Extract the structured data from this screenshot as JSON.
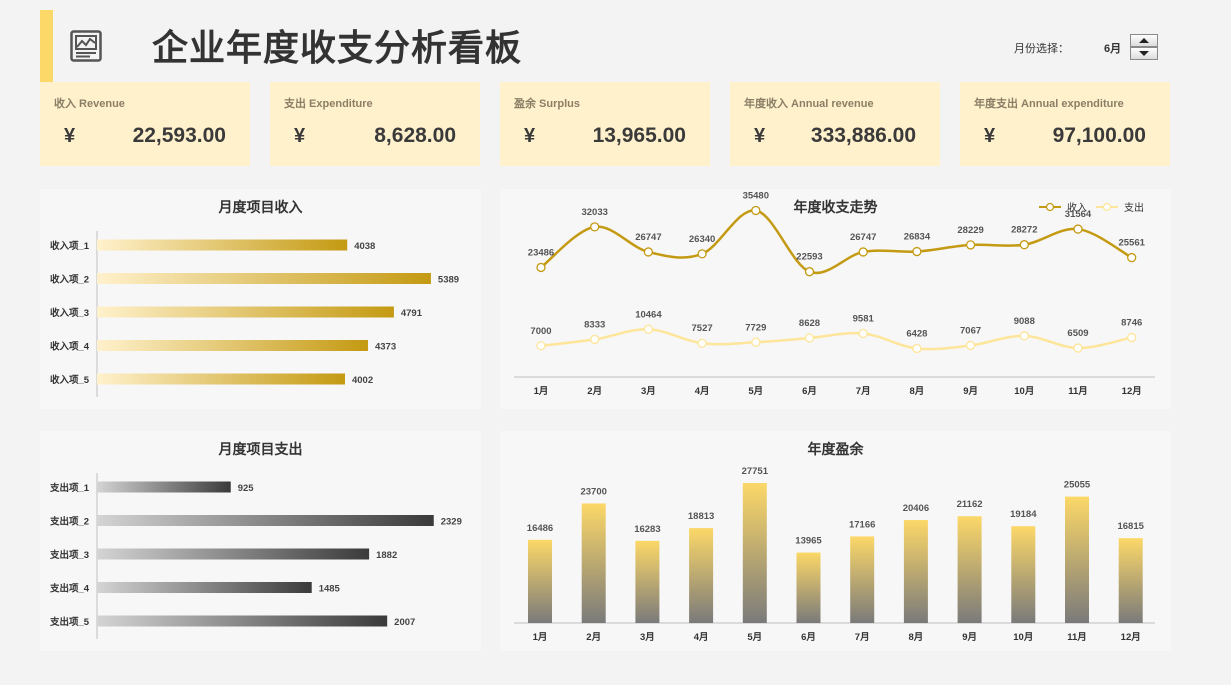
{
  "header": {
    "title": "企业年度收支分析看板",
    "title_icon": "presentation-chart-icon",
    "month_label": "月份选择：",
    "month_value": "6月",
    "accent_color": "#fcd868"
  },
  "kpis": [
    {
      "label": "收入 Revenue",
      "currency": "¥",
      "value": "22,593.00"
    },
    {
      "label": "支出 Expenditure",
      "currency": "¥",
      "value": "8,628.00"
    },
    {
      "label": "盈余 Surplus",
      "currency": "¥",
      "value": "13,965.00"
    },
    {
      "label": "年度收入 Annual revenue",
      "currency": "¥",
      "value": "333,886.00"
    },
    {
      "label": "年度支出 Annual expenditure",
      "currency": "¥",
      "value": "97,100.00"
    }
  ],
  "chart_data": [
    {
      "id": "income_items",
      "type": "bar",
      "orientation": "horizontal",
      "title": "月度项目收入",
      "categories": [
        "收入项_1",
        "收入项_2",
        "收入项_3",
        "收入项_4",
        "收入项_5"
      ],
      "values": [
        4038,
        5389,
        4791,
        4373,
        4002
      ],
      "colors": [
        "#fff1cc",
        "#c49a12"
      ]
    },
    {
      "id": "trend",
      "type": "line",
      "title": "年度收支走势",
      "categories": [
        "1月",
        "2月",
        "3月",
        "4月",
        "5月",
        "6月",
        "7月",
        "8月",
        "9月",
        "10月",
        "11月",
        "12月"
      ],
      "series": [
        {
          "name": "收入",
          "color": "#c49a12",
          "values": [
            23486,
            32033,
            26747,
            26340,
            35480,
            22593,
            26747,
            26834,
            28229,
            28272,
            31564,
            25561
          ]
        },
        {
          "name": "支出",
          "color": "#fde59a",
          "values": [
            7000,
            8333,
            10464,
            7527,
            7729,
            8628,
            9581,
            6428,
            7067,
            9088,
            6509,
            8746
          ]
        }
      ],
      "legend": "top-right"
    },
    {
      "id": "expense_items",
      "type": "bar",
      "orientation": "horizontal",
      "title": "月度项目支出",
      "categories": [
        "支出项_1",
        "支出项_2",
        "支出项_3",
        "支出项_4",
        "支出项_5"
      ],
      "values": [
        925,
        2329,
        1882,
        1485,
        2007
      ],
      "colors": [
        "#d4d4d4",
        "#3a3a3a"
      ]
    },
    {
      "id": "surplus",
      "type": "bar",
      "title": "年度盈余",
      "categories": [
        "1月",
        "2月",
        "3月",
        "4月",
        "5月",
        "6月",
        "7月",
        "8月",
        "9月",
        "10月",
        "11月",
        "12月"
      ],
      "values": [
        16486,
        23700,
        16283,
        18813,
        27751,
        13965,
        17166,
        20406,
        21162,
        19184,
        25055,
        16815
      ],
      "colors": [
        "#fcd868",
        "#7a7a7a"
      ]
    }
  ]
}
